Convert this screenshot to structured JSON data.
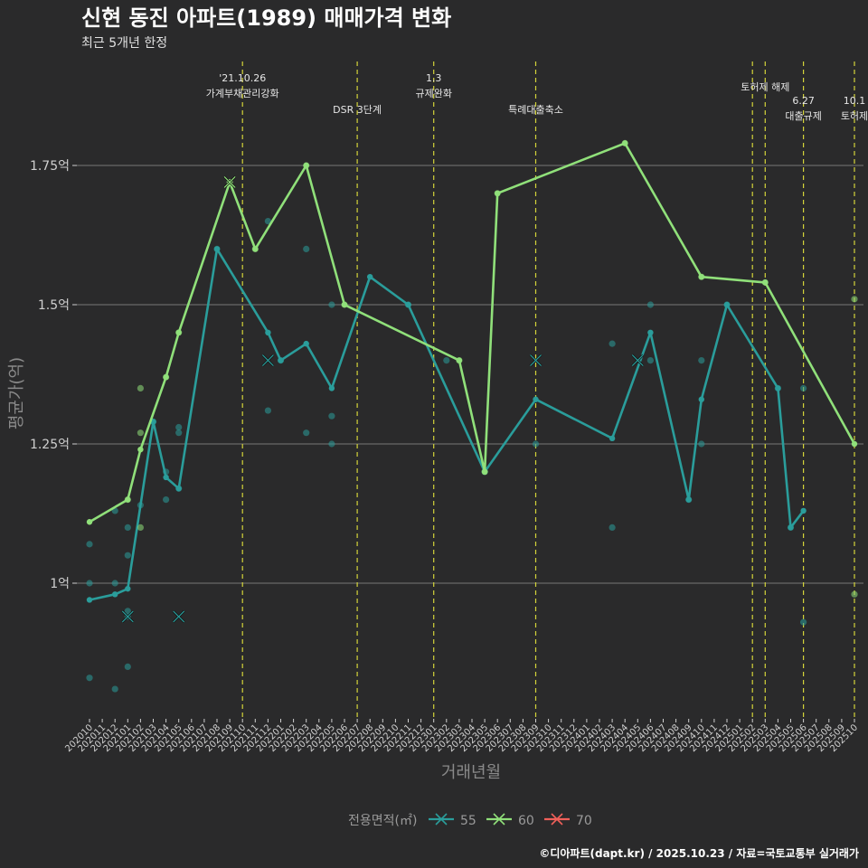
{
  "chart_data": {
    "type": "line",
    "title": "신현 동진 아파트(1989) 매매가격 변화",
    "subtitle": "최근 5개년 한정",
    "xlabel": "거래년월",
    "ylabel": "평균가(억)",
    "ylim": [
      0.77,
      1.87
    ],
    "yticks": [
      {
        "value": 1.0,
        "label": "1억"
      },
      {
        "value": 1.25,
        "label": "1.25억"
      },
      {
        "value": 1.5,
        "label": "1.5억"
      },
      {
        "value": 1.75,
        "label": "1.75억"
      }
    ],
    "months": [
      "202010",
      "202011",
      "202012",
      "202101",
      "202102",
      "202103",
      "202104",
      "202105",
      "202106",
      "202107",
      "202108",
      "202109",
      "202110",
      "202111",
      "202112",
      "202201",
      "202202",
      "202203",
      "202204",
      "202205",
      "202206",
      "202207",
      "202208",
      "202209",
      "202210",
      "202211",
      "202212",
      "202301",
      "202302",
      "202303",
      "202304",
      "202305",
      "202306",
      "202307",
      "202308",
      "202309",
      "202310",
      "202311",
      "202312",
      "202401",
      "202402",
      "202403",
      "202404",
      "202405",
      "202406",
      "202407",
      "202408",
      "202409",
      "202410",
      "202411",
      "202412",
      "202501",
      "202502",
      "202503",
      "202504",
      "202505",
      "202506",
      "202507",
      "202508",
      "202509",
      "202510"
    ],
    "events": [
      {
        "month_index": 12,
        "label": "'21.10.26\n가계부채관리강화"
      },
      {
        "month_index": 21,
        "label": "DSR 3단계"
      },
      {
        "month_index": 27,
        "label": "1.3\n규제완화"
      },
      {
        "month_index": 35,
        "label": "특례대출축소"
      },
      {
        "month_index": 52,
        "label": ""
      },
      {
        "month_index": 53,
        "label": "토허제 해제"
      },
      {
        "month_index": 56,
        "label": "6.27\n대출규제"
      },
      {
        "month_index": 60,
        "label": "10.1\n토허제"
      }
    ],
    "series": [
      {
        "name": "55",
        "color": "#2a9d9b",
        "line": [
          [
            0,
            0.97
          ],
          [
            2,
            0.98
          ],
          [
            3,
            0.99
          ],
          [
            5,
            1.29
          ],
          [
            6,
            1.19
          ],
          [
            7,
            1.17
          ],
          [
            10,
            1.6
          ],
          [
            14,
            1.45
          ],
          [
            15,
            1.4
          ],
          [
            17,
            1.43
          ],
          [
            19,
            1.35
          ],
          [
            22,
            1.55
          ],
          [
            25,
            1.5
          ],
          [
            31,
            1.2
          ],
          [
            35,
            1.33
          ],
          [
            41,
            1.26
          ],
          [
            44,
            1.45
          ],
          [
            47,
            1.15
          ],
          [
            48,
            1.33
          ],
          [
            50,
            1.5
          ],
          [
            54,
            1.35
          ],
          [
            55,
            1.1
          ],
          [
            56,
            1.13
          ]
        ],
        "points": [
          [
            0,
            1.07
          ],
          [
            0,
            1.0
          ],
          [
            0,
            0.83
          ],
          [
            2,
            1.13
          ],
          [
            2,
            1.0
          ],
          [
            2,
            0.81
          ],
          [
            3,
            1.1
          ],
          [
            3,
            1.05
          ],
          [
            3,
            0.95
          ],
          [
            3,
            0.94
          ],
          [
            3,
            0.85
          ],
          [
            4,
            1.14
          ],
          [
            5,
            1.29
          ],
          [
            6,
            1.2
          ],
          [
            6,
            1.15
          ],
          [
            7,
            1.28
          ],
          [
            7,
            1.27
          ],
          [
            7,
            1.17
          ],
          [
            10,
            1.6
          ],
          [
            14,
            1.65
          ],
          [
            14,
            1.31
          ],
          [
            15,
            1.4
          ],
          [
            17,
            1.6
          ],
          [
            17,
            1.27
          ],
          [
            19,
            1.5
          ],
          [
            19,
            1.3
          ],
          [
            19,
            1.25
          ],
          [
            25,
            1.5
          ],
          [
            28,
            1.4
          ],
          [
            31,
            1.2
          ],
          [
            35,
            1.25
          ],
          [
            41,
            1.43
          ],
          [
            41,
            1.1
          ],
          [
            44,
            1.5
          ],
          [
            44,
            1.4
          ],
          [
            47,
            1.15
          ],
          [
            48,
            1.4
          ],
          [
            48,
            1.25
          ],
          [
            50,
            1.5
          ],
          [
            54,
            1.35
          ],
          [
            55,
            1.1
          ],
          [
            56,
            1.35
          ],
          [
            56,
            0.93
          ]
        ],
        "crosses": [
          [
            3,
            0.94
          ],
          [
            7,
            0.94
          ],
          [
            14,
            1.4
          ],
          [
            35,
            1.4
          ],
          [
            43,
            1.4
          ]
        ]
      },
      {
        "name": "60",
        "color": "#90e07a",
        "line": [
          [
            0,
            1.11
          ],
          [
            3,
            1.15
          ],
          [
            4,
            1.24
          ],
          [
            6,
            1.37
          ],
          [
            7,
            1.45
          ],
          [
            11,
            1.72
          ],
          [
            13,
            1.6
          ],
          [
            17,
            1.75
          ],
          [
            20,
            1.5
          ],
          [
            29,
            1.4
          ],
          [
            31,
            1.2
          ],
          [
            32,
            1.7
          ],
          [
            42,
            1.79
          ],
          [
            48,
            1.55
          ],
          [
            53,
            1.54
          ],
          [
            60,
            1.25
          ]
        ],
        "points": [
          [
            3,
            1.15
          ],
          [
            4,
            1.35
          ],
          [
            4,
            1.27
          ],
          [
            4,
            1.1
          ],
          [
            6,
            1.37
          ],
          [
            7,
            1.45
          ],
          [
            11,
            1.72
          ],
          [
            13,
            1.6
          ],
          [
            17,
            1.75
          ],
          [
            20,
            1.5
          ],
          [
            29,
            1.4
          ],
          [
            31,
            1.2
          ],
          [
            32,
            1.7
          ],
          [
            42,
            1.79
          ],
          [
            48,
            1.55
          ],
          [
            53,
            1.54
          ],
          [
            60,
            1.51
          ],
          [
            60,
            0.98
          ]
        ],
        "crosses": [
          [
            11,
            1.72
          ]
        ]
      },
      {
        "name": "70",
        "color": "#f0605a",
        "line": [],
        "points": [],
        "crosses": []
      }
    ],
    "legend_title": "전용면적(㎡)",
    "legend_position": "bottom"
  },
  "credit": "©디아파트(dapt.kr) / 2025.10.23 / 자료=국토교통부 실거래가"
}
